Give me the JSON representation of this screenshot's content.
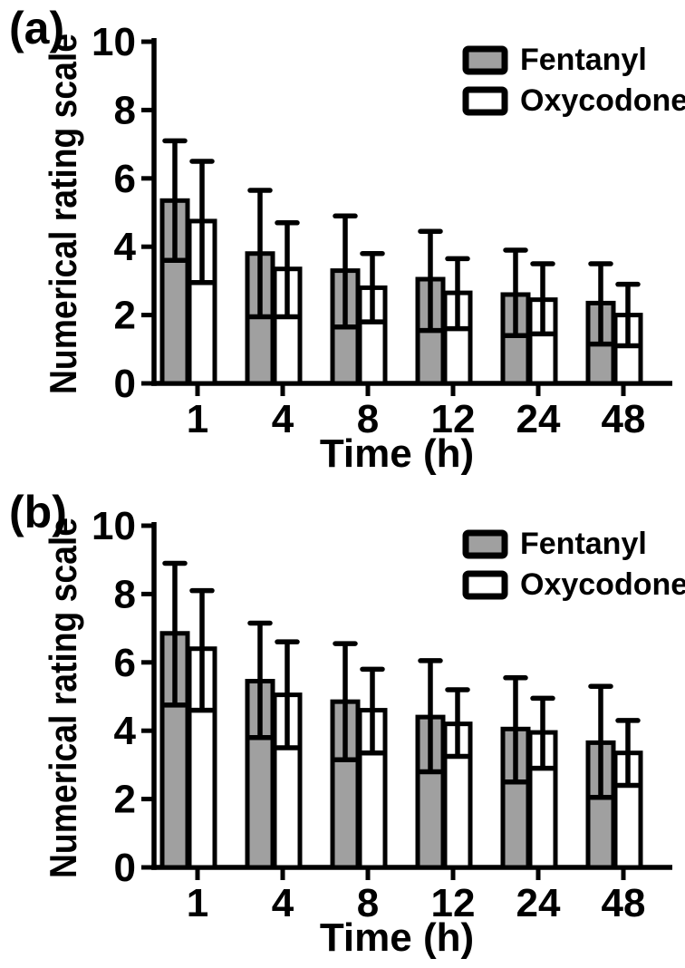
{
  "figure": {
    "background": "#ffffff",
    "ink_color": "#000000",
    "panel_labels": [
      "(a)",
      "(b)"
    ]
  },
  "chart_data": [
    {
      "type": "bar",
      "panel_label": "(a)",
      "xlabel": "Time (h)",
      "ylabel": "Numerical rating scale",
      "categories": [
        "1",
        "4",
        "8",
        "12",
        "24",
        "48"
      ],
      "ylim": [
        0,
        10
      ],
      "yticks": [
        0,
        2,
        4,
        6,
        8,
        10
      ],
      "grid": false,
      "error_bars": "both-directions-with-caps",
      "legend": {
        "position": "top-right",
        "entries": [
          "Fentanyl",
          "Oxycodone"
        ]
      },
      "series": [
        {
          "name": "Fentanyl",
          "fill": "#a0a0a0",
          "values": [
            5.35,
            3.8,
            3.3,
            3.05,
            2.6,
            2.35
          ],
          "err_lower": [
            3.6,
            1.95,
            1.65,
            1.55,
            1.4,
            1.15
          ],
          "err_upper": [
            7.1,
            5.65,
            4.9,
            4.45,
            3.9,
            3.5
          ]
        },
        {
          "name": "Oxycodone",
          "fill": "#ffffff",
          "values": [
            4.75,
            3.35,
            2.8,
            2.65,
            2.45,
            2.0
          ],
          "err_lower": [
            2.95,
            1.95,
            1.8,
            1.6,
            1.45,
            1.1
          ],
          "err_upper": [
            6.5,
            4.7,
            3.8,
            3.65,
            3.5,
            2.9
          ]
        }
      ]
    },
    {
      "type": "bar",
      "panel_label": "(b)",
      "xlabel": "Time (h)",
      "ylabel": "Numerical rating scale",
      "categories": [
        "1",
        "4",
        "8",
        "12",
        "24",
        "48"
      ],
      "ylim": [
        0,
        10
      ],
      "yticks": [
        0,
        2,
        4,
        6,
        8,
        10
      ],
      "grid": false,
      "error_bars": "both-directions-with-caps",
      "legend": {
        "position": "top-right",
        "entries": [
          "Fentanyl",
          "Oxycodone"
        ]
      },
      "series": [
        {
          "name": "Fentanyl",
          "fill": "#a0a0a0",
          "values": [
            6.85,
            5.45,
            4.85,
            4.4,
            4.05,
            3.65
          ],
          "err_lower": [
            4.75,
            3.8,
            3.15,
            2.8,
            2.5,
            2.05
          ],
          "err_upper": [
            8.9,
            7.15,
            6.55,
            6.05,
            5.55,
            5.3
          ]
        },
        {
          "name": "Oxycodone",
          "fill": "#ffffff",
          "values": [
            6.4,
            5.05,
            4.6,
            4.2,
            3.95,
            3.35
          ],
          "err_lower": [
            4.6,
            3.5,
            3.35,
            3.25,
            2.9,
            2.4
          ],
          "err_upper": [
            8.1,
            6.6,
            5.8,
            5.2,
            4.95,
            4.3
          ]
        }
      ]
    }
  ]
}
